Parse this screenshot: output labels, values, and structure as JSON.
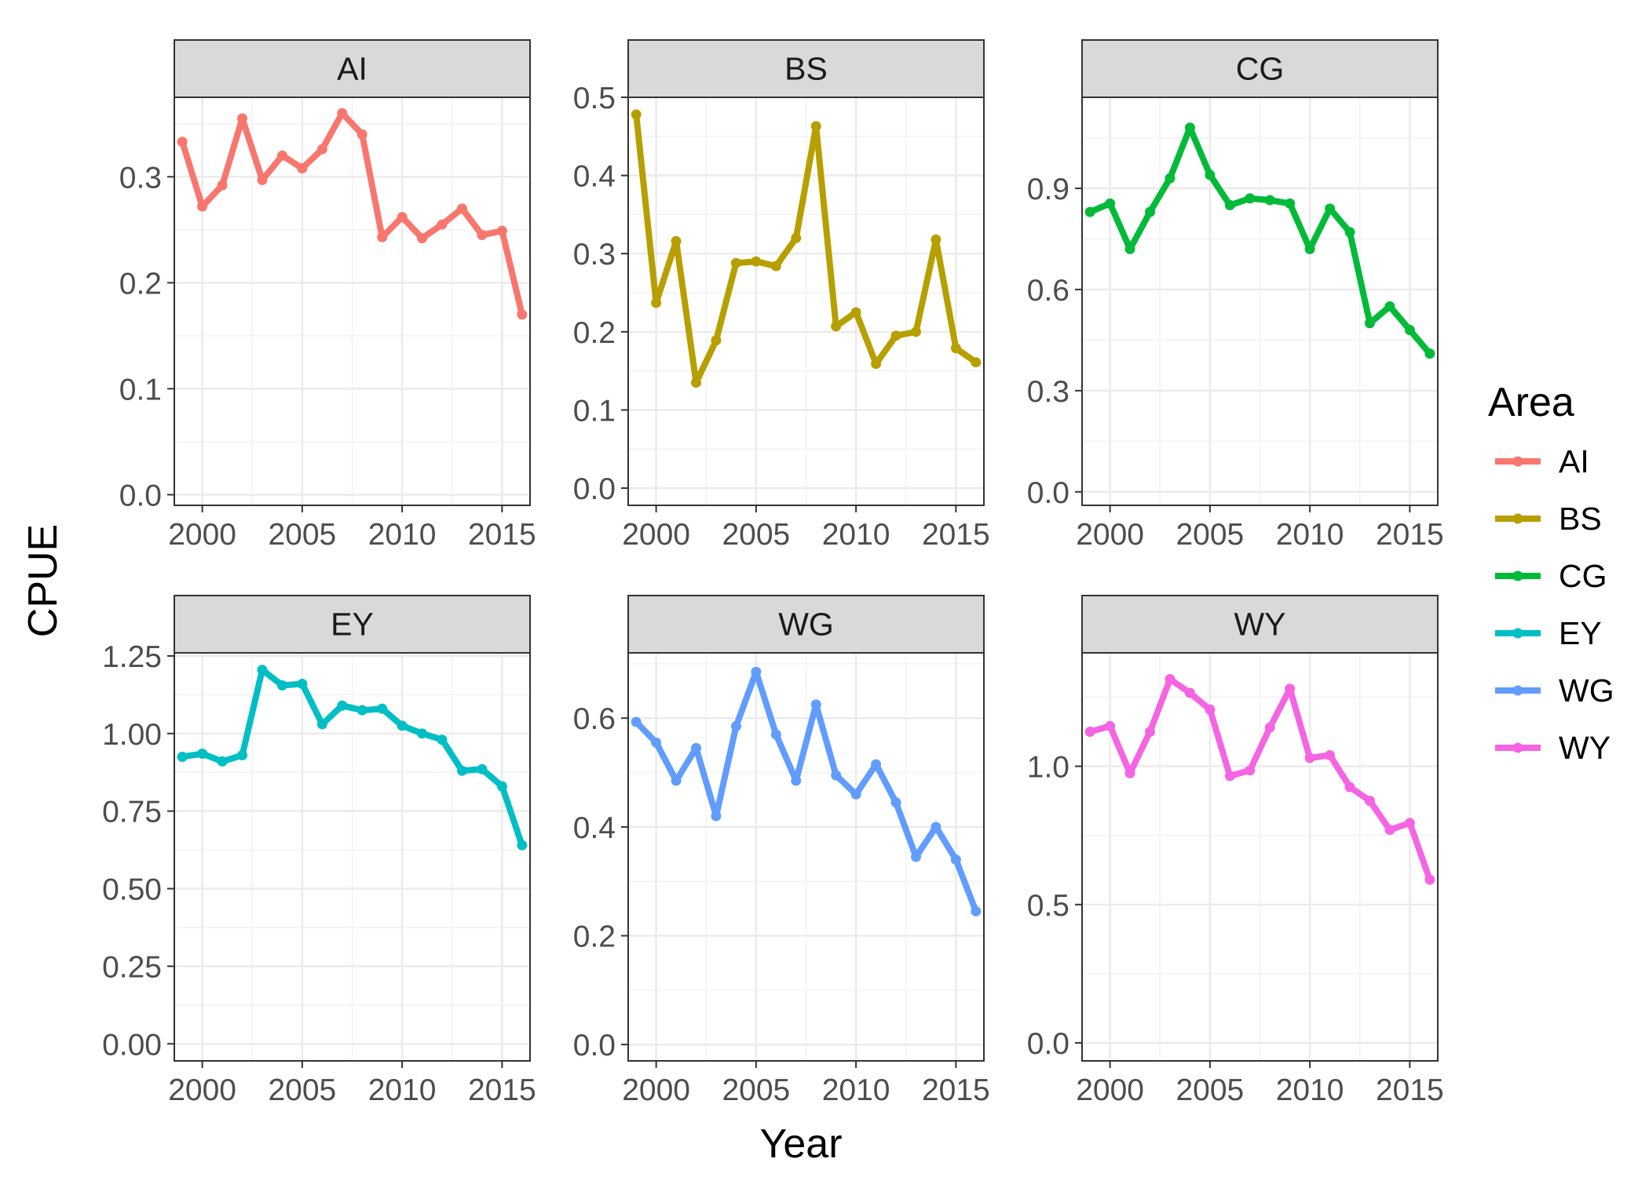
{
  "chart_data": {
    "type": "line",
    "layout": "facet_wrap",
    "xlabel": "Year",
    "ylabel": "CPUE",
    "legend": {
      "title": "Area",
      "placement": "right"
    },
    "grid": true,
    "x": [
      1999,
      2000,
      2001,
      2002,
      2003,
      2004,
      2005,
      2006,
      2007,
      2008,
      2009,
      2010,
      2011,
      2012,
      2013,
      2014,
      2015,
      2016
    ],
    "xlim": [
      1998.6,
      2016.4
    ],
    "xticks": [
      2000,
      2005,
      2010,
      2015
    ],
    "x_tick_labels": [
      "2000",
      "2005",
      "2010",
      "2015"
    ],
    "series": [
      {
        "name": "AI",
        "color": "#F8766D",
        "ylim": [
          -0.01,
          0.375
        ],
        "yticks": [
          0.0,
          0.1,
          0.2,
          0.3
        ],
        "y_tick_labels": [
          "0.0",
          "0.1",
          "0.2",
          "0.3"
        ],
        "values": [
          0.333,
          0.272,
          0.292,
          0.355,
          0.297,
          0.32,
          0.308,
          0.326,
          0.36,
          0.34,
          0.243,
          0.262,
          0.242,
          0.255,
          0.27,
          0.245,
          0.249,
          0.17
        ]
      },
      {
        "name": "BS",
        "color": "#B79F00",
        "ylim": [
          -0.022,
          0.5
        ],
        "yticks": [
          0.0,
          0.1,
          0.2,
          0.3,
          0.4,
          0.5
        ],
        "y_tick_labels": [
          "0.0",
          "0.1",
          "0.2",
          "0.3",
          "0.4",
          "0.5"
        ],
        "values": [
          0.478,
          0.237,
          0.316,
          0.135,
          0.189,
          0.288,
          0.29,
          0.284,
          0.32,
          0.463,
          0.207,
          0.225,
          0.159,
          0.195,
          0.2,
          0.318,
          0.179,
          0.161
        ]
      },
      {
        "name": "CG",
        "color": "#00BA38",
        "ylim": [
          -0.04,
          1.17
        ],
        "yticks": [
          0.0,
          0.3,
          0.6,
          0.9
        ],
        "y_tick_labels": [
          "0.0",
          "0.3",
          "0.6",
          "0.9"
        ],
        "values": [
          0.83,
          0.855,
          0.72,
          0.83,
          0.93,
          1.08,
          0.94,
          0.85,
          0.87,
          0.865,
          0.855,
          0.72,
          0.84,
          0.77,
          0.5,
          0.55,
          0.48,
          0.41
        ]
      },
      {
        "name": "EY",
        "color": "#00BFC4",
        "ylim": [
          -0.055,
          1.26
        ],
        "yticks": [
          0.0,
          0.25,
          0.5,
          0.75,
          1.0,
          1.25
        ],
        "y_tick_labels": [
          "0.00",
          "0.25",
          "0.50",
          "0.75",
          "1.00",
          "1.25"
        ],
        "values": [
          0.925,
          0.935,
          0.91,
          0.93,
          1.205,
          1.155,
          1.16,
          1.03,
          1.09,
          1.075,
          1.08,
          1.025,
          1.0,
          0.98,
          0.88,
          0.885,
          0.83,
          0.64
        ]
      },
      {
        "name": "WG",
        "color": "#619CFF",
        "ylim": [
          -0.03,
          0.72
        ],
        "yticks": [
          0.0,
          0.2,
          0.4,
          0.6
        ],
        "y_tick_labels": [
          "0.0",
          "0.2",
          "0.4",
          "0.6"
        ],
        "values": [
          0.593,
          0.555,
          0.485,
          0.545,
          0.42,
          0.585,
          0.685,
          0.57,
          0.485,
          0.625,
          0.495,
          0.46,
          0.515,
          0.445,
          0.345,
          0.4,
          0.34,
          0.245
        ]
      },
      {
        "name": "WY",
        "color": "#F564E3",
        "ylim": [
          -0.065,
          1.41
        ],
        "yticks": [
          0.0,
          0.5,
          1.0
        ],
        "y_tick_labels": [
          "0.0",
          "0.5",
          "1.0"
        ],
        "values": [
          1.125,
          1.145,
          0.975,
          1.125,
          1.315,
          1.265,
          1.205,
          0.965,
          0.985,
          1.14,
          1.28,
          1.03,
          1.04,
          0.925,
          0.875,
          0.77,
          0.795,
          0.59
        ]
      }
    ]
  }
}
